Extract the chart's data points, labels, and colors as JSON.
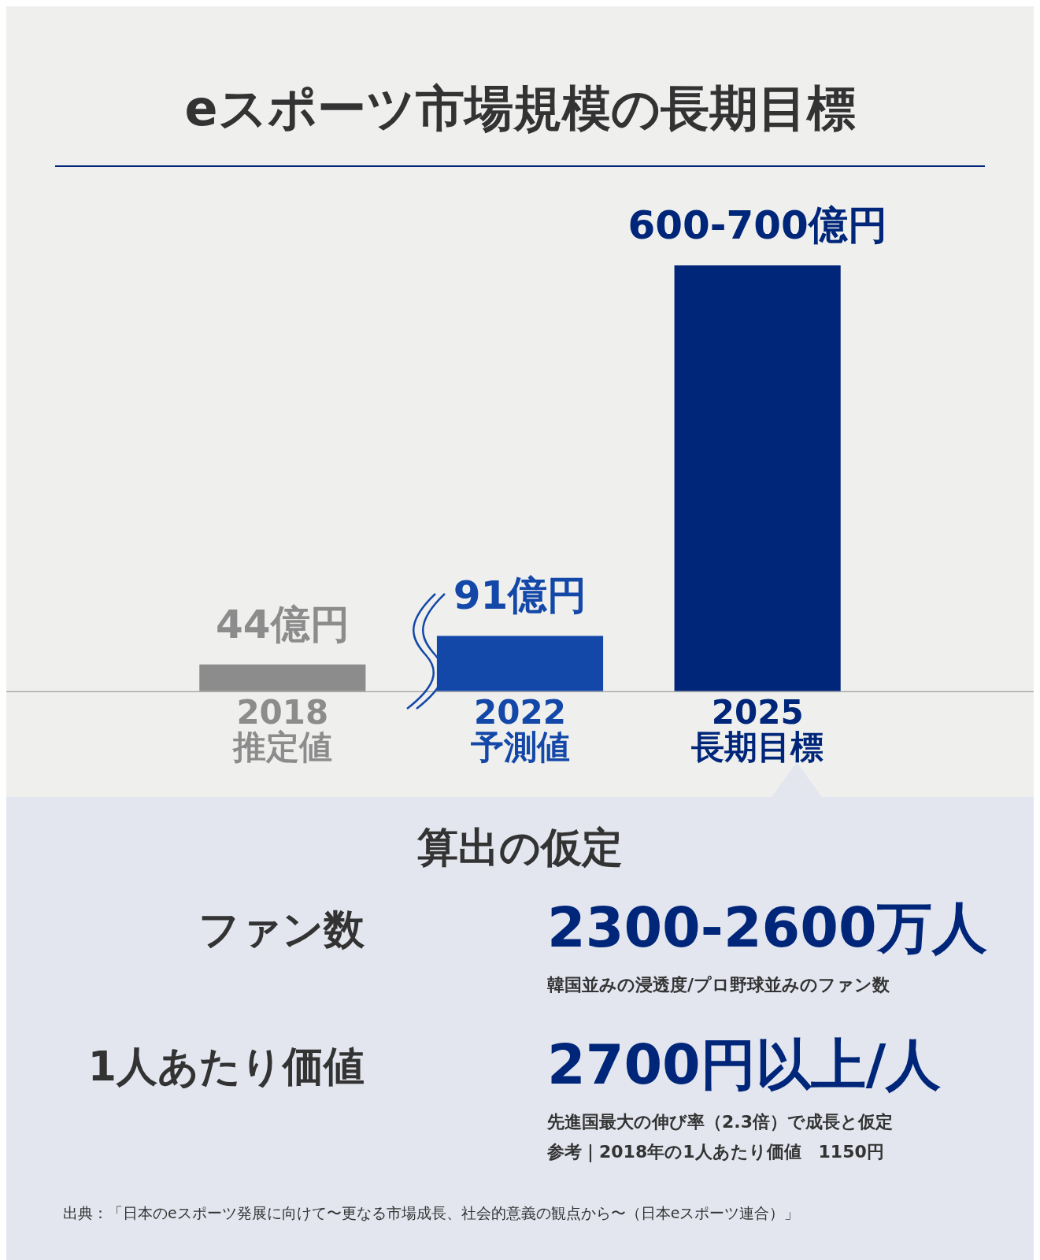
{
  "chart_data": {
    "type": "bar",
    "title": "eスポーツ市場規模の長期目標",
    "categories": [
      "2018\n推定値",
      "2022\n予測値",
      "2025\n長期目標"
    ],
    "values": [
      44,
      91,
      700
    ],
    "colors": [
      "#8c8c8c",
      "#1448a8",
      "#00267a"
    ],
    "value_labels": [
      "44億円",
      "91億円",
      "600-700億円"
    ],
    "annotations": [
      "算出の仮定",
      "ファン数",
      "2300-2600万人",
      "韓国並みの浸透度/プロ野球並みのファン数",
      "1人あたり価値",
      "2700円以上/人",
      "先進国最大の伸び率（2.3倍）で成長と仮定",
      "参考｜2018年の1人あたり価値　1150円",
      "出典：「日本のeスポーツ発展に向けて〜更なる市場成長、社会的意義の観点から〜（日本eスポーツ連合）」"
    ],
    "grid": false,
    "legend": false
  }
}
